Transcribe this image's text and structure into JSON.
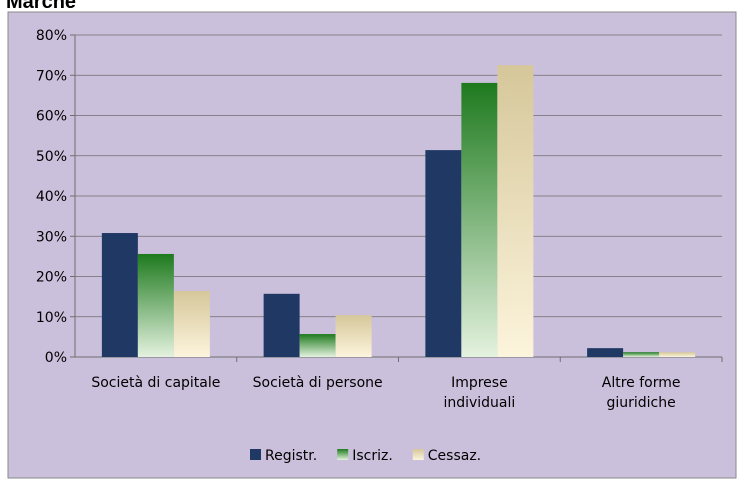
{
  "chart_data": {
    "type": "bar",
    "title": "Marche",
    "categories": [
      "Società di capitale",
      "Società di persone",
      "Imprese\nindividuali",
      "Altre forme\ngiuridiche"
    ],
    "series": [
      {
        "name": "Registr.",
        "color": "#1f3864",
        "values": [
          30.8,
          15.7,
          51.4,
          2.2
        ]
      },
      {
        "name": "Iscriz.",
        "color": "#1e7a1e",
        "values": [
          25.6,
          5.7,
          68.1,
          1.2
        ]
      },
      {
        "name": "Cessaz.",
        "color": "#d6c79a",
        "values": [
          16.4,
          10.4,
          72.5,
          1.2
        ]
      }
    ],
    "ylim": [
      0,
      80
    ],
    "yticks": [
      {
        "value": 0,
        "label": "0%"
      },
      {
        "value": 10,
        "label": "10%"
      },
      {
        "value": 20,
        "label": "20%"
      },
      {
        "value": 30,
        "label": "30%"
      },
      {
        "value": 40,
        "label": "40%"
      },
      {
        "value": 50,
        "label": "50%"
      },
      {
        "value": 60,
        "label": "60%"
      },
      {
        "value": 70,
        "label": "70%"
      },
      {
        "value": 80,
        "label": "80%"
      }
    ],
    "grid": true,
    "legend": "bottom"
  }
}
